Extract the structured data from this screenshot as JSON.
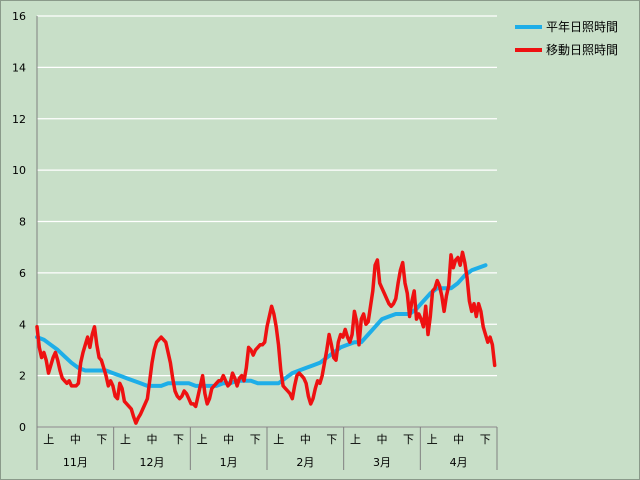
{
  "chart_data": {
    "type": "line",
    "title": "",
    "xlabel": "",
    "ylabel": "",
    "ylim": [
      0,
      16
    ],
    "yticks": [
      0,
      2,
      4,
      6,
      8,
      10,
      12,
      14,
      16
    ],
    "grid": "horizontal",
    "legend_position": "top-right",
    "months": [
      "11月",
      "12月",
      "1月",
      "2月",
      "3月",
      "4月"
    ],
    "decades": [
      "上",
      "中",
      "下"
    ],
    "colors": {
      "series0": "#1eaee8",
      "series1": "#ee1111",
      "grid": "#ffffff",
      "background": "#c8dfc8"
    },
    "series": [
      {
        "name": "平年日照時間",
        "points": [
          [
            0,
            3.5
          ],
          [
            3,
            3.4
          ],
          [
            6,
            3.2
          ],
          [
            9,
            3.0
          ],
          [
            12,
            2.75
          ],
          [
            15,
            2.5
          ],
          [
            18,
            2.3
          ],
          [
            21,
            2.2
          ],
          [
            24,
            2.2
          ],
          [
            27,
            2.2
          ],
          [
            30,
            2.2
          ],
          [
            33,
            2.1
          ],
          [
            36,
            2.0
          ],
          [
            39,
            1.9
          ],
          [
            42,
            1.8
          ],
          [
            45,
            1.7
          ],
          [
            48,
            1.6
          ],
          [
            51,
            1.6
          ],
          [
            54,
            1.6
          ],
          [
            57,
            1.7
          ],
          [
            60,
            1.7
          ],
          [
            63,
            1.7
          ],
          [
            66,
            1.7
          ],
          [
            69,
            1.6
          ],
          [
            72,
            1.6
          ],
          [
            75,
            1.6
          ],
          [
            78,
            1.6
          ],
          [
            81,
            1.7
          ],
          [
            84,
            1.7
          ],
          [
            87,
            1.8
          ],
          [
            90,
            1.8
          ],
          [
            93,
            1.8
          ],
          [
            96,
            1.7
          ],
          [
            99,
            1.7
          ],
          [
            102,
            1.7
          ],
          [
            105,
            1.7
          ],
          [
            108,
            1.9
          ],
          [
            111,
            2.1
          ],
          [
            114,
            2.2
          ],
          [
            117,
            2.3
          ],
          [
            120,
            2.4
          ],
          [
            123,
            2.5
          ],
          [
            126,
            2.7
          ],
          [
            129,
            2.9
          ],
          [
            132,
            3.1
          ],
          [
            135,
            3.2
          ],
          [
            138,
            3.3
          ],
          [
            141,
            3.3
          ],
          [
            144,
            3.6
          ],
          [
            147,
            3.9
          ],
          [
            150,
            4.2
          ],
          [
            153,
            4.3
          ],
          [
            156,
            4.4
          ],
          [
            159,
            4.4
          ],
          [
            162,
            4.4
          ],
          [
            165,
            4.6
          ],
          [
            168,
            4.9
          ],
          [
            171,
            5.2
          ],
          [
            174,
            5.4
          ],
          [
            177,
            5.4
          ],
          [
            180,
            5.4
          ],
          [
            183,
            5.6
          ],
          [
            186,
            5.9
          ],
          [
            189,
            6.1
          ],
          [
            192,
            6.2
          ],
          [
            195,
            6.3
          ]
        ]
      },
      {
        "name": "移動日照時間",
        "points": [
          [
            0,
            3.9
          ],
          [
            1,
            3.1
          ],
          [
            2,
            2.7
          ],
          [
            3,
            2.9
          ],
          [
            4,
            2.6
          ],
          [
            5,
            2.1
          ],
          [
            6,
            2.4
          ],
          [
            7,
            2.7
          ],
          [
            8,
            2.9
          ],
          [
            9,
            2.6
          ],
          [
            10,
            2.2
          ],
          [
            11,
            1.9
          ],
          [
            12,
            1.8
          ],
          [
            13,
            1.7
          ],
          [
            14,
            1.8
          ],
          [
            15,
            1.6
          ],
          [
            16,
            1.6
          ],
          [
            17,
            1.6
          ],
          [
            18,
            1.7
          ],
          [
            19,
            2.5
          ],
          [
            20,
            2.9
          ],
          [
            21,
            3.2
          ],
          [
            22,
            3.5
          ],
          [
            23,
            3.1
          ],
          [
            24,
            3.6
          ],
          [
            25,
            3.9
          ],
          [
            26,
            3.2
          ],
          [
            27,
            2.7
          ],
          [
            28,
            2.6
          ],
          [
            29,
            2.3
          ],
          [
            30,
            2.0
          ],
          [
            31,
            1.6
          ],
          [
            32,
            1.8
          ],
          [
            33,
            1.6
          ],
          [
            34,
            1.2
          ],
          [
            35,
            1.1
          ],
          [
            36,
            1.7
          ],
          [
            37,
            1.5
          ],
          [
            38,
            1.0
          ],
          [
            39,
            0.9
          ],
          [
            40,
            0.8
          ],
          [
            41,
            0.7
          ],
          [
            42,
            0.4
          ],
          [
            43,
            0.15
          ],
          [
            44,
            0.35
          ],
          [
            45,
            0.5
          ],
          [
            46,
            0.7
          ],
          [
            47,
            0.9
          ],
          [
            48,
            1.1
          ],
          [
            49,
            1.8
          ],
          [
            50,
            2.5
          ],
          [
            51,
            3.0
          ],
          [
            52,
            3.3
          ],
          [
            53,
            3.4
          ],
          [
            54,
            3.5
          ],
          [
            55,
            3.4
          ],
          [
            56,
            3.3
          ],
          [
            57,
            2.9
          ],
          [
            58,
            2.5
          ],
          [
            59,
            1.9
          ],
          [
            60,
            1.4
          ],
          [
            61,
            1.2
          ],
          [
            62,
            1.1
          ],
          [
            63,
            1.2
          ],
          [
            64,
            1.4
          ],
          [
            65,
            1.3
          ],
          [
            66,
            1.1
          ],
          [
            67,
            0.9
          ],
          [
            68,
            0.9
          ],
          [
            69,
            0.8
          ],
          [
            70,
            1.2
          ],
          [
            71,
            1.6
          ],
          [
            72,
            2.0
          ],
          [
            73,
            1.3
          ],
          [
            74,
            0.9
          ],
          [
            75,
            1.1
          ],
          [
            76,
            1.5
          ],
          [
            77,
            1.6
          ],
          [
            78,
            1.7
          ],
          [
            79,
            1.8
          ],
          [
            80,
            1.8
          ],
          [
            81,
            2.0
          ],
          [
            82,
            1.8
          ],
          [
            83,
            1.6
          ],
          [
            84,
            1.7
          ],
          [
            85,
            2.1
          ],
          [
            86,
            1.9
          ],
          [
            87,
            1.6
          ],
          [
            88,
            1.9
          ],
          [
            89,
            2.0
          ],
          [
            90,
            1.8
          ],
          [
            91,
            2.3
          ],
          [
            92,
            3.1
          ],
          [
            93,
            3.0
          ],
          [
            94,
            2.8
          ],
          [
            95,
            3.0
          ],
          [
            96,
            3.1
          ],
          [
            97,
            3.2
          ],
          [
            98,
            3.2
          ],
          [
            99,
            3.3
          ],
          [
            100,
            3.9
          ],
          [
            101,
            4.3
          ],
          [
            102,
            4.7
          ],
          [
            103,
            4.4
          ],
          [
            104,
            3.9
          ],
          [
            105,
            3.2
          ],
          [
            106,
            2.2
          ],
          [
            107,
            1.6
          ],
          [
            108,
            1.5
          ],
          [
            109,
            1.4
          ],
          [
            110,
            1.3
          ],
          [
            111,
            1.1
          ],
          [
            112,
            1.6
          ],
          [
            113,
            2.0
          ],
          [
            114,
            2.1
          ],
          [
            115,
            2.0
          ],
          [
            116,
            1.9
          ],
          [
            117,
            1.7
          ],
          [
            118,
            1.2
          ],
          [
            119,
            0.9
          ],
          [
            120,
            1.1
          ],
          [
            121,
            1.5
          ],
          [
            122,
            1.8
          ],
          [
            123,
            1.7
          ],
          [
            124,
            2.0
          ],
          [
            125,
            2.5
          ],
          [
            126,
            3.0
          ],
          [
            127,
            3.6
          ],
          [
            128,
            3.2
          ],
          [
            129,
            2.7
          ],
          [
            130,
            2.6
          ],
          [
            131,
            3.3
          ],
          [
            132,
            3.6
          ],
          [
            133,
            3.5
          ],
          [
            134,
            3.8
          ],
          [
            135,
            3.5
          ],
          [
            136,
            3.3
          ],
          [
            137,
            3.6
          ],
          [
            138,
            4.5
          ],
          [
            139,
            4.1
          ],
          [
            140,
            3.2
          ],
          [
            141,
            4.2
          ],
          [
            142,
            4.4
          ],
          [
            143,
            4.0
          ],
          [
            144,
            4.1
          ],
          [
            145,
            4.7
          ],
          [
            146,
            5.3
          ],
          [
            147,
            6.3
          ],
          [
            148,
            6.5
          ],
          [
            149,
            5.6
          ],
          [
            150,
            5.4
          ],
          [
            151,
            5.2
          ],
          [
            152,
            5.0
          ],
          [
            153,
            4.8
          ],
          [
            154,
            4.7
          ],
          [
            155,
            4.8
          ],
          [
            156,
            5.0
          ],
          [
            157,
            5.6
          ],
          [
            158,
            6.1
          ],
          [
            159,
            6.4
          ],
          [
            160,
            5.6
          ],
          [
            161,
            5.2
          ],
          [
            162,
            4.3
          ],
          [
            163,
            4.9
          ],
          [
            164,
            5.3
          ],
          [
            165,
            4.2
          ],
          [
            166,
            4.4
          ],
          [
            167,
            4.2
          ],
          [
            168,
            3.9
          ],
          [
            169,
            4.7
          ],
          [
            170,
            3.6
          ],
          [
            171,
            4.3
          ],
          [
            172,
            5.3
          ],
          [
            173,
            5.4
          ],
          [
            174,
            5.7
          ],
          [
            175,
            5.5
          ],
          [
            176,
            5.1
          ],
          [
            177,
            4.5
          ],
          [
            178,
            5.1
          ],
          [
            179,
            5.5
          ],
          [
            180,
            6.7
          ],
          [
            181,
            6.2
          ],
          [
            182,
            6.5
          ],
          [
            183,
            6.6
          ],
          [
            184,
            6.3
          ],
          [
            185,
            6.8
          ],
          [
            186,
            6.4
          ],
          [
            187,
            5.8
          ],
          [
            188,
            4.9
          ],
          [
            189,
            4.5
          ],
          [
            190,
            4.8
          ],
          [
            191,
            4.3
          ],
          [
            192,
            4.8
          ],
          [
            193,
            4.5
          ],
          [
            194,
            3.9
          ],
          [
            195,
            3.6
          ],
          [
            196,
            3.3
          ],
          [
            197,
            3.5
          ],
          [
            198,
            3.2
          ],
          [
            199,
            2.4
          ]
        ]
      }
    ]
  }
}
